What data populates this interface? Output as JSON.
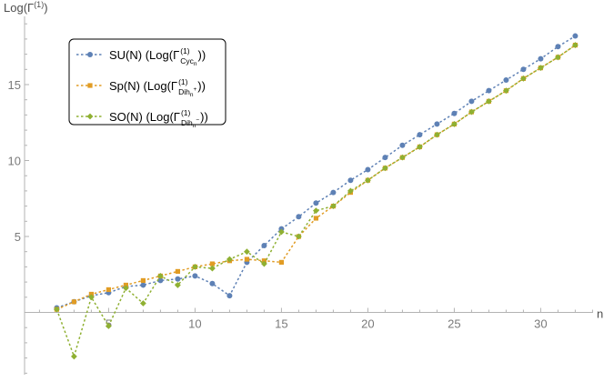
{
  "chart_data": {
    "type": "line",
    "ylabel": "Log(Γ",
    "ylabel_sup": "(1)",
    "ylabel_close": ")",
    "xlabel": "n",
    "xlim": [
      0,
      33
    ],
    "ylim": [
      -4,
      19
    ],
    "xticks": [
      5,
      10,
      15,
      20,
      25,
      30
    ],
    "yticks": [
      5,
      10,
      15
    ],
    "grid": false,
    "legend_position": "top-left",
    "series": [
      {
        "legend_prefix": "SU(N) (Log(Γ",
        "legend_sup": "(1)",
        "legend_sub": "Cyc",
        "legend_subsub": "n",
        "legend_suffix": "))",
        "color": "#5e81b5",
        "marker": "circle",
        "x": [
          2,
          3,
          4,
          5,
          6,
          7,
          8,
          9,
          10,
          11,
          12,
          13,
          14,
          15,
          16,
          17,
          18,
          19,
          20,
          21,
          22,
          23,
          24,
          25,
          26,
          27,
          28,
          29,
          30,
          31,
          32
        ],
        "y": [
          0.3,
          0.7,
          1.1,
          1.3,
          1.7,
          1.8,
          2.1,
          2.2,
          2.4,
          1.9,
          1.1,
          3.3,
          4.4,
          5.5,
          6.3,
          7.2,
          7.9,
          8.7,
          9.4,
          10.2,
          11.0,
          11.7,
          12.4,
          13.1,
          13.9,
          14.6,
          15.3,
          16.0,
          16.7,
          17.5,
          18.2
        ]
      },
      {
        "legend_prefix": "Sp(N) (Log(Γ",
        "legend_sup": "(1)",
        "legend_sub": "Dih",
        "legend_subsub": "n",
        "legend_subsup": "+",
        "legend_suffix": "))",
        "color": "#e19c24",
        "marker": "square",
        "x": [
          2,
          3,
          4,
          5,
          6,
          7,
          8,
          9,
          10,
          11,
          12,
          13,
          14,
          15,
          16,
          17,
          18,
          19,
          20,
          21,
          22,
          23,
          24,
          25,
          26,
          27,
          28,
          29,
          30,
          31,
          32
        ],
        "y": [
          0.2,
          0.7,
          1.2,
          1.5,
          1.8,
          2.1,
          2.4,
          2.7,
          3.0,
          3.2,
          3.4,
          3.5,
          3.4,
          3.3,
          5.0,
          6.2,
          7.0,
          7.9,
          8.7,
          9.5,
          10.2,
          10.9,
          11.7,
          12.4,
          13.2,
          13.9,
          14.6,
          15.4,
          16.1,
          16.8,
          17.6
        ]
      },
      {
        "legend_prefix": "SO(N) (Log(Γ",
        "legend_sup": "(1)",
        "legend_sub": "Dih",
        "legend_subsub": "n",
        "legend_subsup": "−",
        "legend_suffix": "))",
        "color": "#8fb032",
        "marker": "diamond",
        "x": [
          2,
          3,
          4,
          5,
          6,
          7,
          8,
          9,
          10,
          11,
          12,
          13,
          14,
          15,
          16,
          17,
          18,
          19,
          20,
          21,
          22,
          23,
          24,
          25,
          26,
          27,
          28,
          29,
          30,
          31,
          32
        ],
        "y": [
          0.2,
          -2.9,
          1.0,
          -0.9,
          1.6,
          0.6,
          2.4,
          1.8,
          3.0,
          2.9,
          3.5,
          4.0,
          3.2,
          5.3,
          5.0,
          6.7,
          7.0,
          8.0,
          8.7,
          9.5,
          10.2,
          10.9,
          11.7,
          12.4,
          13.2,
          13.9,
          14.6,
          15.4,
          16.1,
          16.8,
          17.6
        ]
      }
    ]
  }
}
